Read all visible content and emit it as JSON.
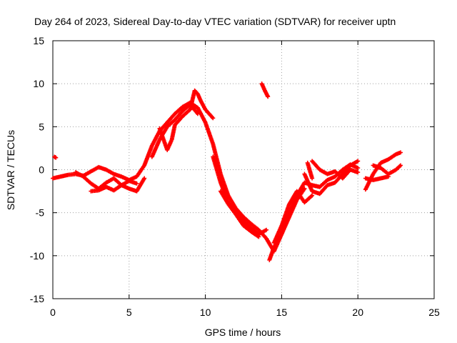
{
  "chart_data": {
    "type": "scatter",
    "title": "Day 264 of 2023, Sidereal Day-to-day VTEC variation (SDTVAR) for receiver uptn",
    "xlabel": "GPS time / hours",
    "ylabel": "SDTVAR / TECUs",
    "xlim": [
      0,
      25
    ],
    "ylim": [
      -15,
      15
    ],
    "xticks": [
      0,
      5,
      10,
      15,
      20,
      25
    ],
    "yticks": [
      -15,
      -10,
      -5,
      0,
      5,
      10,
      15
    ],
    "grid": true,
    "marker": "+",
    "series": [
      {
        "name": "SDTVAR",
        "color": "#ff0000",
        "tracks": [
          {
            "x": [
              0,
              0.5,
              1,
              1.5,
              2,
              2.5,
              3,
              3.5,
              4,
              4.5,
              5,
              5.5,
              6,
              6.5,
              7,
              7.5,
              8,
              8.5,
              9,
              9.5,
              10,
              10.5,
              11,
              11.5,
              12,
              12.5,
              13,
              13.5,
              14,
              14.5,
              15,
              15.5,
              16,
              16.5,
              17,
              17.5,
              18,
              18.5,
              19,
              19.5,
              20
            ],
            "y": [
              -1,
              -0.8,
              -0.6,
              -0.5,
              -0.7,
              -0.2,
              0.3,
              0,
              -0.5,
              -0.8,
              -1.2,
              -0.8,
              0.5,
              2.8,
              4.5,
              5.5,
              6.5,
              7.3,
              7.8,
              7.2,
              5.5,
              3,
              -0.5,
              -3,
              -4.5,
              -5.5,
              -6.3,
              -7,
              -8,
              -9.5,
              -7.5,
              -5,
              -3,
              -1.5,
              -1.8,
              -2,
              -1.2,
              -0.8,
              0,
              0.6,
              0.2
            ]
          },
          {
            "x": [
              1.5,
              2,
              2.5,
              3,
              3.5,
              4,
              4.5,
              5,
              5.5,
              6
            ],
            "y": [
              -0.3,
              -0.8,
              -1.6,
              -2.2,
              -1.5,
              -1,
              -1.8,
              -2.2,
              -2.5,
              -1
            ]
          },
          {
            "x": [
              2.5,
              3,
              3.5,
              4,
              4.5,
              5,
              5.5
            ],
            "y": [
              -2.5,
              -2.4,
              -2,
              -2.4,
              -1.8,
              -1.3,
              -1.6
            ]
          },
          {
            "x": [
              6.5,
              7,
              7.5,
              8,
              8.5,
              9,
              9.5
            ],
            "y": [
              1.5,
              3.5,
              5,
              5.8,
              6.8,
              7.6,
              6.5
            ]
          },
          {
            "x": [
              7,
              7.5,
              7.8,
              8,
              8.5,
              9
            ],
            "y": [
              4.8,
              2.3,
              3.5,
              5.2,
              6.2,
              7
            ]
          },
          {
            "x": [
              9,
              9.3,
              9.5,
              9.7,
              10,
              10.5
            ],
            "y": [
              7,
              9.2,
              8.8,
              8,
              7,
              6
            ]
          },
          {
            "x": [
              10.5,
              11,
              11.5,
              12,
              12.5,
              13,
              13.5,
              14
            ],
            "y": [
              1.5,
              -1.5,
              -3.8,
              -4.8,
              -6,
              -6.8,
              -7.5,
              -7
            ]
          },
          {
            "x": [
              11,
              11.5,
              12,
              12.5,
              13,
              13.5
            ],
            "y": [
              -2.5,
              -4,
              -5.2,
              -6.5,
              -7.2,
              -7.8
            ]
          },
          {
            "x": [
              13.7,
              13.9,
              14.1
            ],
            "y": [
              10,
              9.2,
              8.5
            ]
          },
          {
            "x": [
              14.2,
              14.5,
              15,
              15.5,
              16,
              16.5
            ],
            "y": [
              -10.5,
              -9,
              -7.5,
              -5.5,
              -3.5,
              -2.2
            ]
          },
          {
            "x": [
              14.5,
              15,
              15.5,
              16,
              16.5,
              17
            ],
            "y": [
              -8.5,
              -6.5,
              -4,
              -2.5,
              -3.8,
              -3
            ]
          },
          {
            "x": [
              16.5,
              17,
              17.5,
              18,
              18.5,
              19,
              19.5,
              20
            ],
            "y": [
              -0.5,
              -2.5,
              -2.8,
              -1.8,
              -1.5,
              -0.5,
              0.5,
              1
            ]
          },
          {
            "x": [
              17,
              17.5,
              18,
              18.5,
              19,
              19.5,
              20
            ],
            "y": [
              1,
              0,
              -0.5,
              -0.2,
              -1,
              0,
              -0.3
            ]
          },
          {
            "x": [
              16.7,
              17
            ],
            "y": [
              0.8,
              -1
            ]
          },
          {
            "x": [
              20.5,
              21,
              21.5,
              22,
              22.5,
              22.8
            ],
            "y": [
              -2.3,
              -0.5,
              0.8,
              1.2,
              1.8,
              2
            ]
          },
          {
            "x": [
              20.5,
              21,
              21.5,
              22
            ],
            "y": [
              -1,
              -1.2,
              -1,
              -0.8
            ]
          },
          {
            "x": [
              21,
              21.5,
              22,
              22.5,
              22.8
            ],
            "y": [
              0.5,
              0.2,
              -0.5,
              0,
              0.5
            ]
          },
          {
            "x": [
              0.1,
              0.2
            ],
            "y": [
              1.5,
              1.4
            ]
          }
        ]
      }
    ]
  }
}
